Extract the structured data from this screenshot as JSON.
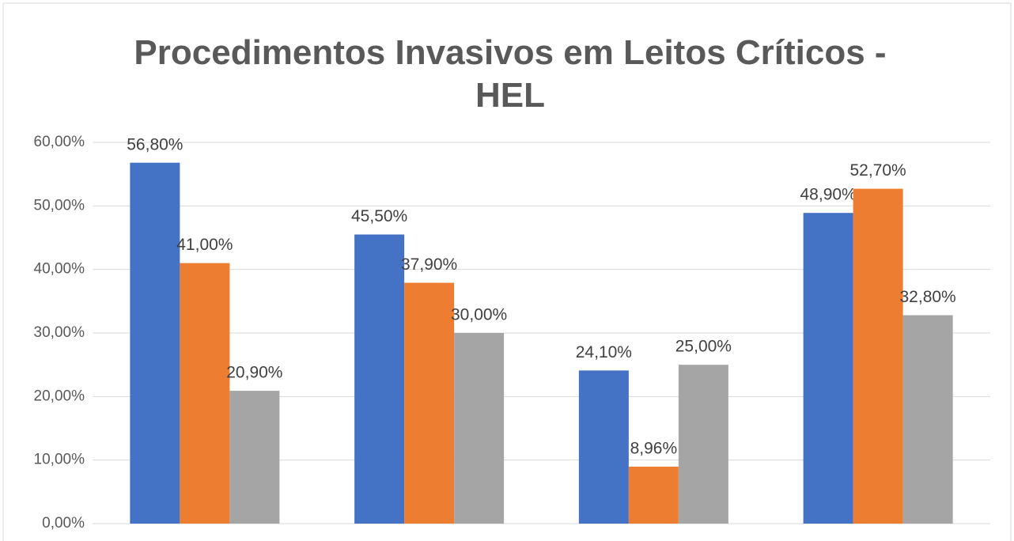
{
  "chart_data": {
    "type": "bar",
    "title": "Procedimentos Invasivos em Leitos Críticos - HEL",
    "categories": [
      null,
      null,
      null,
      null
    ],
    "series": [
      {
        "color": "#4472c4",
        "values": [
          56.8,
          45.5,
          24.1,
          48.9
        ],
        "value_labels": [
          "56,80%",
          "45,50%",
          "24,10%",
          "48,90%"
        ]
      },
      {
        "color": "#ed7d31",
        "values": [
          41,
          37.9,
          8.96,
          52.7
        ],
        "value_labels": [
          "41,00%",
          "37,90%",
          "8,96%",
          "52,70%"
        ]
      },
      {
        "color": "#a5a5a5",
        "values": [
          20.9,
          30,
          25,
          32.8
        ],
        "value_labels": [
          "20,90%",
          "30,00%",
          "25,00%",
          "32,80%"
        ]
      }
    ],
    "ylim": [
      0,
      60
    ],
    "yticks": [
      {
        "value": 0,
        "label": "0,00%"
      },
      {
        "value": 10,
        "label": "10,00%"
      },
      {
        "value": 20,
        "label": "20,00%"
      },
      {
        "value": 30,
        "label": "30,00%"
      },
      {
        "value": 40,
        "label": "40,00%"
      },
      {
        "value": 50,
        "label": "50,00%"
      },
      {
        "value": 60,
        "label": "60,00%"
      }
    ],
    "grid": true
  }
}
